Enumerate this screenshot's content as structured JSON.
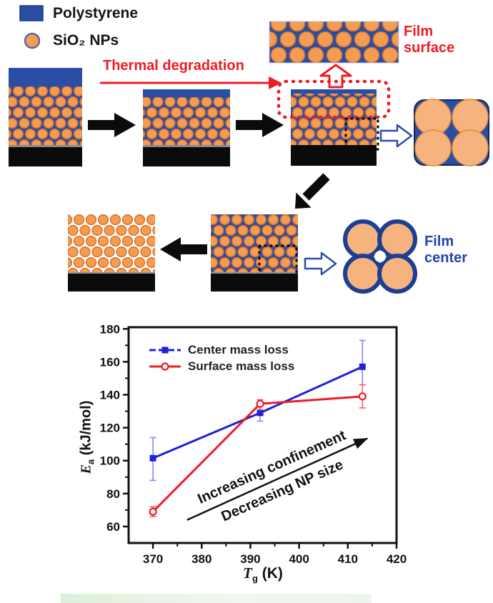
{
  "figure": {
    "legend": {
      "polystyrene": "Polystyrene",
      "sio2": "SiO₂ NPs"
    },
    "labels": {
      "thermal_degradation": "Thermal degradation",
      "film_surface": "Film surface",
      "film_center": "Film center"
    }
  },
  "colors": {
    "polystyrene_blue": "#2b4ea5",
    "np_orange": "#f49d52",
    "np_edge": "#dd7226",
    "np_light": "#f6b37e",
    "substrate_black": "#0b0b0b",
    "accent_red": "#ee1c25",
    "center_text_blue": "#2146a8"
  },
  "chart_data": {
    "type": "line",
    "x": [
      370,
      392,
      413
    ],
    "series": [
      {
        "name": "Center mass loss",
        "color": "#1f1fdd",
        "err_color": "#8c8cff",
        "marker": "square",
        "sample_dash": "9 4",
        "values": [
          101.5,
          129,
          157
        ],
        "err_lo": [
          88,
          124,
          146
        ],
        "err_hi": [
          114,
          134,
          173
        ]
      },
      {
        "name": "Surface mass loss",
        "color": "#ee1c25",
        "err_color": "#f06a6a",
        "marker": "circle-open",
        "sample_dash": "",
        "values": [
          69,
          134.5,
          139
        ],
        "err_lo": [
          66,
          131,
          132
        ],
        "err_hi": [
          72,
          137,
          146
        ]
      }
    ],
    "xlabel": "Tg (K)",
    "ylabel": "Ea (kJ/mol)",
    "xlabel_parts": {
      "sym": "T",
      "sub": "g",
      "unit": " (K)"
    },
    "ylabel_parts": {
      "sym": "E",
      "sub": "a",
      "unit": " (kJ/mol)"
    },
    "xlim": [
      365,
      420
    ],
    "ylim": [
      50,
      181
    ],
    "xticks": [
      370,
      380,
      390,
      400,
      410,
      420
    ],
    "yticks": [
      60,
      80,
      100,
      120,
      140,
      160,
      180
    ],
    "grid": false,
    "legend_position": "top-left",
    "annotation": {
      "line1": "Increasing confinement",
      "line2": "Decreasing NP size",
      "x1": 377,
      "y1": 64,
      "x2": 414,
      "y2": 113.5
    }
  }
}
